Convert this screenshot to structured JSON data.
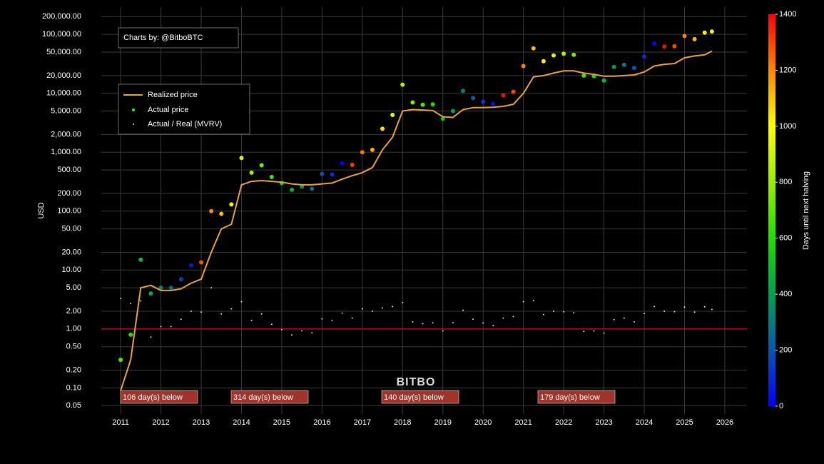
{
  "chart_data": {
    "type": "scatter",
    "credit": "Charts by: @BitboBTC",
    "watermark": "BITBO",
    "y_label": "USD",
    "colorbar_label": "Days until next halving",
    "log_y": true,
    "grid": true,
    "legend_position": "upper left",
    "hline": {
      "value": 1,
      "color": "#cc1122"
    },
    "xlim": [
      2010.52,
      2026.55
    ],
    "xticks": [
      2011,
      2012,
      2013,
      2014,
      2015,
      2016,
      2017,
      2018,
      2019,
      2020,
      2021,
      2022,
      2023,
      2024,
      2025,
      2026
    ],
    "ylim": [
      0.036,
      290000
    ],
    "yticks": [
      {
        "value": 0.05,
        "label": "0.05"
      },
      {
        "value": 0.1,
        "label": "0.10"
      },
      {
        "value": 0.2,
        "label": "0.20"
      },
      {
        "value": 0.5,
        "label": "0.50"
      },
      {
        "value": 1,
        "label": "1.00"
      },
      {
        "value": 2,
        "label": "2.00"
      },
      {
        "value": 5,
        "label": "5.00"
      },
      {
        "value": 10,
        "label": "10.00"
      },
      {
        "value": 20,
        "label": "20.00"
      },
      {
        "value": 50,
        "label": "50.00"
      },
      {
        "value": 100,
        "label": "100.00"
      },
      {
        "value": 200,
        "label": "200.00"
      },
      {
        "value": 500,
        "label": "500.00"
      },
      {
        "value": 1000,
        "label": "1,000.00"
      },
      {
        "value": 2000,
        "label": "2,000.00"
      },
      {
        "value": 5000,
        "label": "5,000.00"
      },
      {
        "value": 10000,
        "label": "10,000.00"
      },
      {
        "value": 20000,
        "label": "20,000.00"
      },
      {
        "value": 50000,
        "label": "50,000.00"
      },
      {
        "value": 100000,
        "label": "100,000.00"
      },
      {
        "value": 200000,
        "label": "200,000.00"
      }
    ],
    "clim": [
      0,
      1400
    ],
    "cticks": [
      0,
      200,
      400,
      600,
      800,
      1000,
      1200,
      1400
    ],
    "colorscale": [
      "#0000ff",
      "#0a55b0",
      "#00a050",
      "#22dd00",
      "#99ee00",
      "#ffff00",
      "#ff8800",
      "#ff0000"
    ],
    "x": [
      2011,
      2011.25,
      2011.5,
      2011.75,
      2012,
      2012.25,
      2012.5,
      2012.75,
      2013,
      2013.25,
      2013.5,
      2013.75,
      2014,
      2014.25,
      2014.5,
      2014.75,
      2015,
      2015.25,
      2015.5,
      2015.75,
      2016,
      2016.25,
      2016.5,
      2016.75,
      2017,
      2017.25,
      2017.5,
      2017.75,
      2018,
      2018.25,
      2018.5,
      2018.75,
      2019,
      2019.25,
      2019.5,
      2019.75,
      2020,
      2020.25,
      2020.5,
      2020.75,
      2021,
      2021.25,
      2021.5,
      2021.75,
      2022,
      2022.25,
      2022.5,
      2022.75,
      2023,
      2023.25,
      2023.5,
      2023.75,
      2024,
      2024.25,
      2024.5,
      2024.75,
      2025,
      2025.25,
      2025.5,
      2025.68
    ],
    "series": [
      {
        "name": "Realized price",
        "color": "#e8a33a",
        "values": [
          0.09,
          0.3,
          5,
          5.5,
          4.5,
          4.5,
          4.8,
          6,
          7,
          20,
          50,
          60,
          280,
          320,
          330,
          320,
          310,
          290,
          280,
          280,
          290,
          300,
          350,
          400,
          450,
          550,
          1100,
          1800,
          5000,
          5300,
          5200,
          5100,
          4000,
          3900,
          5300,
          5700,
          5700,
          5800,
          6000,
          6500,
          10000,
          19000,
          20000,
          22000,
          24000,
          24000,
          22000,
          21000,
          19500,
          19500,
          20000,
          20500,
          23000,
          29000,
          31000,
          32000,
          40000,
          43000,
          45000,
          52000
        ]
      },
      {
        "name": "Actual price",
        "color": "#33ee22",
        "values": [
          0.3,
          0.8,
          15,
          4,
          5,
          5,
          7,
          12,
          13.5,
          100,
          90,
          130,
          800,
          450,
          600,
          380,
          300,
          230,
          260,
          240,
          430,
          420,
          650,
          610,
          1000,
          1100,
          2500,
          4300,
          14000,
          7000,
          6400,
          6500,
          3700,
          5000,
          11000,
          8300,
          7200,
          6600,
          9200,
          10600,
          29000,
          58000,
          35000,
          44000,
          47000,
          45000,
          20000,
          19500,
          16500,
          28000,
          30500,
          27000,
          42000,
          70000,
          62000,
          63000,
          94000,
          83000,
          107000,
          112000
        ],
        "color_values": [
          698,
          606,
          515,
          424,
          332,
          241,
          150,
          58,
          1286,
          1194,
          1103,
          1012,
          921,
          829,
          738,
          647,
          555,
          464,
          373,
          281,
          190,
          99,
          7,
          1319,
          1227,
          1136,
          1045,
          953,
          862,
          771,
          680,
          588,
          497,
          405,
          314,
          223,
          131,
          40,
          1388,
          1297,
          1205,
          1114,
          1023,
          931,
          840,
          748,
          657,
          566,
          475,
          383,
          292,
          201,
          110,
          18,
          1388,
          1297,
          1205,
          1114,
          1023,
          957
        ]
      },
      {
        "name": "Actual / Real (MVRV)",
        "color": "#dddddd",
        "values": [
          3.3,
          2.7,
          3,
          0.73,
          1.1,
          1.1,
          1.46,
          2,
          1.93,
          5,
          1.8,
          2.2,
          2.9,
          1.4,
          1.8,
          1.2,
          0.97,
          0.79,
          0.93,
          0.86,
          1.48,
          1.4,
          1.86,
          1.53,
          2.2,
          2,
          2.27,
          2.4,
          2.8,
          1.32,
          1.23,
          1.27,
          0.93,
          1.28,
          2.08,
          1.46,
          1.26,
          1.14,
          1.53,
          1.63,
          2.9,
          3.05,
          1.75,
          2,
          1.96,
          1.88,
          0.91,
          0.93,
          0.85,
          1.44,
          1.53,
          1.32,
          1.83,
          2.41,
          2,
          1.97,
          2.35,
          1.93,
          2.38,
          2.15
        ]
      }
    ],
    "annotations": [
      "106 day(s) below",
      "314 day(s) below",
      "140 day(s) below",
      "179 day(s) below"
    ]
  }
}
